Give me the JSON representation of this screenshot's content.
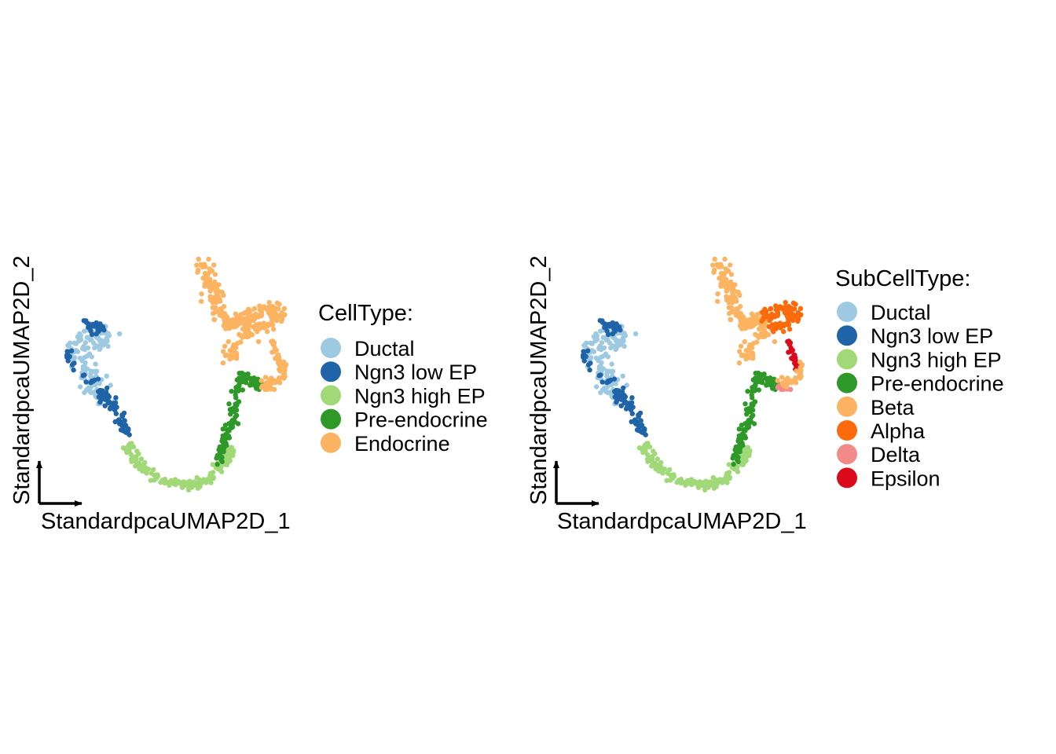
{
  "chart_data": [
    {
      "type": "scatter",
      "title": "",
      "xlabel": "StandardpcaUMAP2D_1",
      "ylabel": "StandardpcaUMAP2D_2",
      "grid": false,
      "legend_position": "right",
      "legend_title": "CellType:",
      "legend": [
        {
          "label": "Ductal",
          "color": "#9ECAE1"
        },
        {
          "label": "Ngn3 low EP",
          "color": "#1F63A8"
        },
        {
          "label": "Ngn3 high EP",
          "color": "#A1D978"
        },
        {
          "label": "Pre-endocrine",
          "color": "#2E9928"
        },
        {
          "label": "Endocrine",
          "color": "#FDB462"
        }
      ],
      "color_by": "group",
      "xlim": [
        0,
        100
      ],
      "ylim": [
        0,
        100
      ],
      "groups": [
        {
          "group": "Ductal",
          "x_range": [
            5,
            30
          ],
          "y_range": [
            38,
            72
          ]
        },
        {
          "group": "Ngn3 low EP",
          "x_range": [
            4,
            35
          ],
          "y_range": [
            22,
            72
          ]
        },
        {
          "group": "Ngn3 high EP",
          "x_range": [
            33,
            80
          ],
          "y_range": [
            0,
            22
          ]
        },
        {
          "group": "Pre-endocrine",
          "x_range": [
            68,
            85
          ],
          "y_range": [
            10,
            55
          ]
        },
        {
          "group": "Endocrine",
          "x_range": [
            63,
            100
          ],
          "y_range": [
            42,
            100
          ]
        }
      ]
    },
    {
      "type": "scatter",
      "title": "",
      "xlabel": "StandardpcaUMAP2D_1",
      "ylabel": "StandardpcaUMAP2D_2",
      "grid": false,
      "legend_position": "right",
      "legend_title": "SubCellType:",
      "legend": [
        {
          "label": "Ductal",
          "color": "#9ECAE1"
        },
        {
          "label": "Ngn3 low EP",
          "color": "#1F63A8"
        },
        {
          "label": "Ngn3 high EP",
          "color": "#A1D978"
        },
        {
          "label": "Pre-endocrine",
          "color": "#2E9928"
        },
        {
          "label": "Beta",
          "color": "#FDB462"
        },
        {
          "label": "Alpha",
          "color": "#FB6A0B"
        },
        {
          "label": "Delta",
          "color": "#F38A8A"
        },
        {
          "label": "Epsilon",
          "color": "#DA0A1C"
        }
      ],
      "color_by": "group",
      "xlim": [
        0,
        100
      ],
      "ylim": [
        0,
        100
      ],
      "groups": [
        {
          "group": "Ductal",
          "x_range": [
            5,
            30
          ],
          "y_range": [
            38,
            72
          ]
        },
        {
          "group": "Ngn3 low EP",
          "x_range": [
            4,
            35
          ],
          "y_range": [
            22,
            72
          ]
        },
        {
          "group": "Ngn3 high EP",
          "x_range": [
            33,
            80
          ],
          "y_range": [
            0,
            22
          ]
        },
        {
          "group": "Pre-endocrine",
          "x_range": [
            68,
            85
          ],
          "y_range": [
            10,
            55
          ]
        },
        {
          "group": "Beta",
          "x_range": [
            63,
            85
          ],
          "y_range": [
            55,
            100
          ]
        },
        {
          "group": "Alpha",
          "x_range": [
            78,
            100
          ],
          "y_range": [
            55,
            80
          ]
        },
        {
          "group": "Delta",
          "x_range": [
            88,
            96
          ],
          "y_range": [
            42,
            48
          ]
        },
        {
          "group": "Epsilon",
          "x_range": [
            93,
            100
          ],
          "y_range": [
            50,
            67
          ]
        }
      ]
    }
  ]
}
